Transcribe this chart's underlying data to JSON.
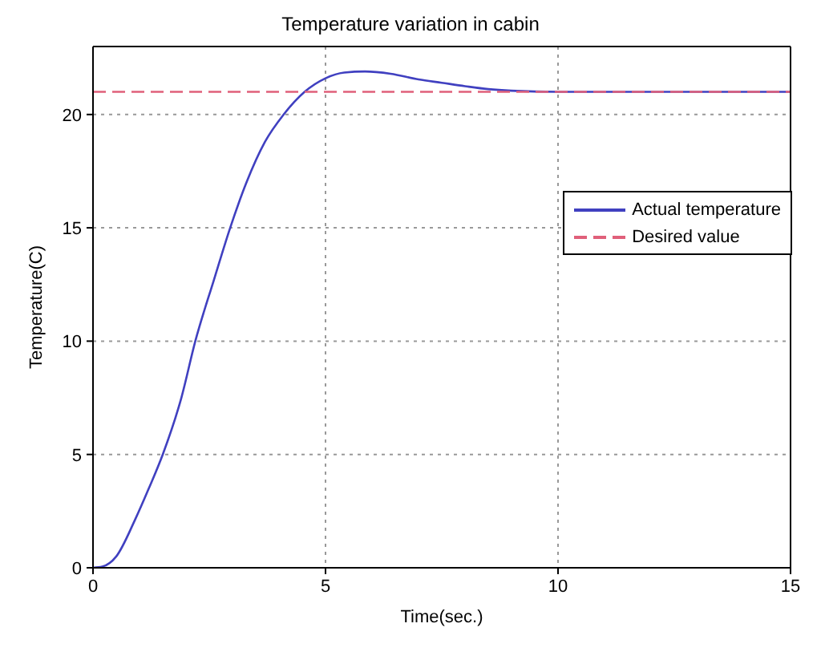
{
  "chart_data": {
    "type": "line",
    "title": "Temperature variation in cabin",
    "xlabel": "Time(sec.)",
    "ylabel": "Temperature(C)",
    "xlim": [
      0,
      15
    ],
    "xticks": [
      0,
      5,
      10,
      15
    ],
    "ylim": [
      0,
      23
    ],
    "yticks": [
      0,
      5,
      10,
      15,
      20
    ],
    "grid": true,
    "legend": "top right",
    "marker": "none",
    "series": [
      {
        "name": "Actual temperature",
        "color": "#4040c0",
        "line_style": "solid",
        "x": [
          0,
          0.2,
          0.5,
          0.9,
          1.2,
          1.5,
          1.9,
          2.2,
          2.6,
          2.95,
          3.3,
          3.7,
          4.1,
          4.55,
          5,
          5.4,
          5.85,
          6.4,
          7,
          7.5,
          8,
          8.5,
          9,
          10,
          12,
          15
        ],
        "values": [
          0,
          0.05,
          0.5,
          2.1,
          3.5,
          5,
          7.5,
          10,
          12.7,
          15,
          17,
          18.8,
          20,
          21,
          21.6,
          21.85,
          21.9,
          21.8,
          21.55,
          21.4,
          21.25,
          21.12,
          21.05,
          21,
          21,
          21
        ]
      },
      {
        "name": "Desired value",
        "color": "#e0607a",
        "line_style": "dashed",
        "x": [
          0,
          15
        ],
        "values": [
          21,
          21
        ]
      }
    ]
  }
}
